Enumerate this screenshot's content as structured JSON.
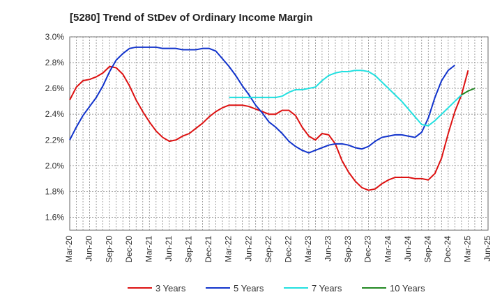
{
  "chart_data": {
    "type": "line",
    "title": "[5280]  Trend of StDev of Ordinary Income Margin",
    "xlabel": "",
    "ylabel": "",
    "ylim": [
      1.5,
      3.0
    ],
    "y_ticks": [
      {
        "value": 1.6,
        "label": "1.6%"
      },
      {
        "value": 1.8,
        "label": "1.8%"
      },
      {
        "value": 2.0,
        "label": "2.0%"
      },
      {
        "value": 2.2,
        "label": "2.2%"
      },
      {
        "value": 2.4,
        "label": "2.4%"
      },
      {
        "value": 2.6,
        "label": "2.6%"
      },
      {
        "value": 2.8,
        "label": "2.8%"
      },
      {
        "value": 3.0,
        "label": "3.0%"
      }
    ],
    "x_ticks": [
      "Mar-20",
      "Jun-20",
      "Sep-20",
      "Dec-20",
      "Mar-21",
      "Jun-21",
      "Sep-21",
      "Dec-21",
      "Mar-22",
      "Jun-22",
      "Sep-22",
      "Dec-22",
      "Mar-23",
      "Jun-23",
      "Sep-23",
      "Dec-23",
      "Mar-24",
      "Jun-24",
      "Sep-24",
      "Dec-24",
      "Mar-25",
      "Jun-25"
    ],
    "x_range": [
      0,
      63
    ],
    "grid": true,
    "legend_position": "bottom",
    "series": [
      {
        "name": "3 Years",
        "color": "#dd1111",
        "x": [
          0,
          1,
          2,
          3,
          4,
          5,
          6,
          7,
          8,
          9,
          10,
          11,
          12,
          13,
          14,
          15,
          16,
          17,
          18,
          19,
          20,
          21,
          22,
          23,
          24,
          25,
          26,
          27,
          28,
          29,
          30,
          31,
          32,
          33,
          34,
          35,
          36,
          37,
          38,
          39,
          40,
          41,
          42,
          43,
          44,
          45,
          46,
          47,
          48,
          49,
          50,
          51,
          52,
          53,
          54,
          55,
          56,
          57,
          58,
          59,
          60,
          61
        ],
        "values": [
          2.51,
          2.61,
          2.66,
          2.67,
          2.69,
          2.72,
          2.77,
          2.76,
          2.71,
          2.62,
          2.51,
          2.42,
          2.34,
          2.27,
          2.22,
          2.19,
          2.2,
          2.23,
          2.25,
          2.29,
          2.33,
          2.38,
          2.42,
          2.45,
          2.47,
          2.47,
          2.47,
          2.46,
          2.44,
          2.42,
          2.4,
          2.4,
          2.43,
          2.43,
          2.39,
          2.3,
          2.23,
          2.2,
          2.25,
          2.24,
          2.17,
          2.04,
          1.95,
          1.88,
          1.83,
          1.81,
          1.82,
          1.86,
          1.89,
          1.91,
          1.91,
          1.91,
          1.9,
          1.9,
          1.89,
          1.94,
          2.06,
          2.25,
          2.42,
          2.55,
          2.74,
          null
        ]
      },
      {
        "name": "5 Years",
        "color": "#1133cc",
        "x": [
          0,
          1,
          2,
          3,
          4,
          5,
          6,
          7,
          8,
          9,
          10,
          11,
          12,
          13,
          14,
          15,
          16,
          17,
          18,
          19,
          20,
          21,
          22,
          23,
          24,
          25,
          26,
          27,
          28,
          29,
          30,
          31,
          32,
          33,
          34,
          35,
          36,
          37,
          38,
          39,
          40,
          41,
          42,
          43,
          44,
          45,
          46,
          47,
          48,
          49,
          50,
          51,
          52,
          53,
          54,
          55,
          56,
          57,
          58,
          59,
          60,
          61
        ],
        "values": [
          2.2,
          2.3,
          2.39,
          2.46,
          2.53,
          2.62,
          2.73,
          2.82,
          2.87,
          2.91,
          2.92,
          2.92,
          2.92,
          2.92,
          2.91,
          2.91,
          2.91,
          2.9,
          2.9,
          2.9,
          2.91,
          2.91,
          2.89,
          2.83,
          2.77,
          2.7,
          2.62,
          2.55,
          2.47,
          2.41,
          2.34,
          2.3,
          2.25,
          2.19,
          2.15,
          2.12,
          2.1,
          2.12,
          2.14,
          2.16,
          2.17,
          2.17,
          2.16,
          2.14,
          2.13,
          2.15,
          2.19,
          2.22,
          2.23,
          2.24,
          2.24,
          2.23,
          2.22,
          2.26,
          2.37,
          2.53,
          2.66,
          2.74,
          2.78,
          null,
          null,
          null
        ]
      },
      {
        "name": "7 Years",
        "color": "#22e0e0",
        "x": [
          24,
          25,
          26,
          27,
          28,
          29,
          30,
          31,
          32,
          33,
          34,
          35,
          36,
          37,
          38,
          39,
          40,
          41,
          42,
          43,
          44,
          45,
          46,
          47,
          48,
          49,
          50,
          51,
          52,
          53,
          54,
          55,
          56,
          57,
          58,
          59,
          60,
          61
        ],
        "values": [
          2.53,
          2.53,
          2.53,
          2.53,
          2.53,
          2.53,
          2.53,
          2.53,
          2.54,
          2.57,
          2.59,
          2.59,
          2.6,
          2.61,
          2.66,
          2.7,
          2.72,
          2.73,
          2.73,
          2.74,
          2.74,
          2.73,
          2.7,
          2.65,
          2.6,
          2.55,
          2.5,
          2.44,
          2.38,
          2.32,
          2.31,
          2.35,
          2.4,
          2.45,
          2.5,
          2.55,
          null,
          null
        ]
      },
      {
        "name": "10 Years",
        "color": "#228822",
        "x": [
          59,
          60,
          61
        ],
        "values": [
          2.55,
          2.58,
          2.6
        ]
      }
    ]
  }
}
